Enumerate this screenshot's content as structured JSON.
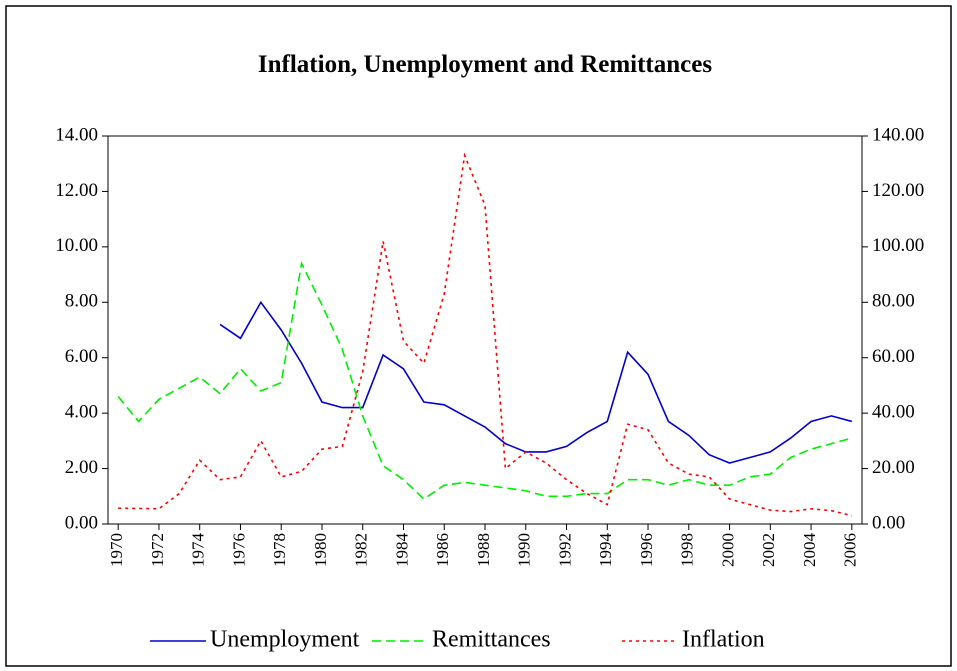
{
  "chart_data": {
    "type": "line",
    "title": "Inflation, Unemployment and Remittances",
    "x": [
      1970,
      1971,
      1972,
      1973,
      1974,
      1975,
      1976,
      1977,
      1978,
      1979,
      1980,
      1981,
      1982,
      1983,
      1984,
      1985,
      1986,
      1987,
      1988,
      1989,
      1990,
      1991,
      1992,
      1993,
      1994,
      1995,
      1996,
      1997,
      1998,
      1999,
      2000,
      2001,
      2002,
      2003,
      2004,
      2005,
      2006
    ],
    "xlim": [
      1969.5,
      2006.5
    ],
    "xticks": [
      1970,
      1972,
      1974,
      1976,
      1978,
      1980,
      1982,
      1984,
      1986,
      1988,
      1990,
      1992,
      1994,
      1996,
      1998,
      2000,
      2002,
      2004,
      2006
    ],
    "ylim": [
      0,
      14
    ],
    "yticks": [
      {
        "value": 0,
        "label": "0.00"
      },
      {
        "value": 2,
        "label": "2.00"
      },
      {
        "value": 4,
        "label": "4.00"
      },
      {
        "value": 6,
        "label": "6.00"
      },
      {
        "value": 8,
        "label": "8.00"
      },
      {
        "value": 10,
        "label": "10.00"
      },
      {
        "value": 12,
        "label": "12.00"
      },
      {
        "value": 14,
        "label": "14.00"
      }
    ],
    "y2lim": [
      0,
      140
    ],
    "y2ticks": [
      {
        "value": 0,
        "label": "0.00"
      },
      {
        "value": 20,
        "label": "20.00"
      },
      {
        "value": 40,
        "label": "40.00"
      },
      {
        "value": 60,
        "label": "60.00"
      },
      {
        "value": 80,
        "label": "80.00"
      },
      {
        "value": 100,
        "label": "100.00"
      },
      {
        "value": 120,
        "label": "120.00"
      },
      {
        "value": 140,
        "label": "140.00"
      }
    ],
    "legend": "bottom",
    "series": [
      {
        "name": "Unemployment",
        "color": "#0000cc",
        "dash": "solid",
        "values": [
          null,
          null,
          null,
          null,
          null,
          7.2,
          6.7,
          8.0,
          7.0,
          5.8,
          4.4,
          4.2,
          4.2,
          6.1,
          5.6,
          4.4,
          4.3,
          3.9,
          3.5,
          2.9,
          2.6,
          2.6,
          2.8,
          3.3,
          3.7,
          6.2,
          5.4,
          3.7,
          3.2,
          2.5,
          2.2,
          2.4,
          2.6,
          3.1,
          3.7,
          3.9,
          3.7
        ]
      },
      {
        "name": "Remittances",
        "color": "#00ee00",
        "dash": "dashed",
        "values": [
          4.6,
          3.7,
          4.5,
          4.9,
          5.3,
          4.7,
          5.6,
          4.8,
          5.1,
          9.4,
          7.9,
          6.3,
          3.9,
          2.1,
          1.6,
          0.9,
          1.4,
          1.5,
          1.4,
          1.3,
          1.2,
          1.0,
          1.0,
          1.1,
          1.1,
          1.6,
          1.6,
          1.4,
          1.6,
          1.4,
          1.4,
          1.7,
          1.8,
          2.4,
          2.7,
          2.9,
          3.1
        ]
      },
      {
        "name": "Inflation",
        "color": "#ff0000",
        "dash": "dotted",
        "axis": "y2",
        "values": [
          5.7,
          5.6,
          5.5,
          11,
          23,
          16,
          17,
          30,
          17,
          19,
          27,
          28,
          55,
          102,
          66,
          58,
          83,
          133,
          115,
          20,
          26,
          22,
          16,
          11,
          7,
          36,
          34,
          22,
          18,
          17,
          9,
          7,
          5,
          4.5,
          5.5,
          4.8,
          3
        ]
      }
    ]
  }
}
